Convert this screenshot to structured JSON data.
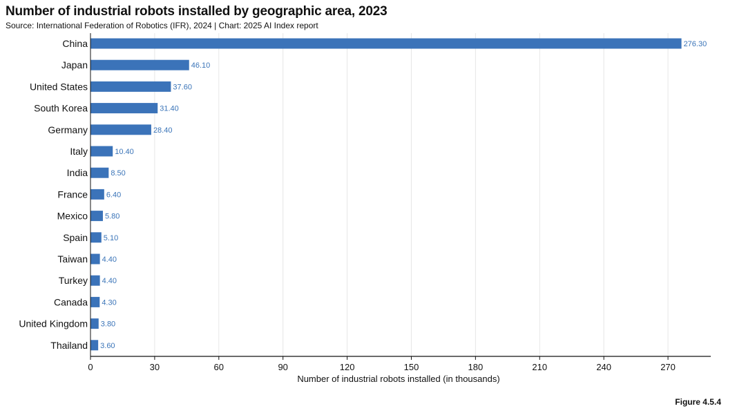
{
  "header": {
    "title": "Number of industrial robots installed by geographic area, 2023",
    "subtitle": "Source: International Federation of Robotics (IFR), 2024 | Chart: 2025 AI Index report"
  },
  "footer": {
    "figure_label": "Figure 4.5.4"
  },
  "colors": {
    "bar": "#3b73b9",
    "value_label": "#3a74b8",
    "grid": "#e6e6e6",
    "axis": "#111111"
  },
  "chart_data": {
    "type": "bar",
    "orientation": "horizontal",
    "title": "Number of industrial robots installed by geographic area, 2023",
    "xlabel": "Number of industrial robots installed (in thousands)",
    "ylabel": "",
    "xlim": [
      0,
      290
    ],
    "xticks": [
      0,
      30,
      60,
      90,
      120,
      150,
      180,
      210,
      240,
      270
    ],
    "grid": true,
    "legend": "none",
    "categories": [
      "China",
      "Japan",
      "United States",
      "South Korea",
      "Germany",
      "Italy",
      "India",
      "France",
      "Mexico",
      "Spain",
      "Taiwan",
      "Turkey",
      "Canada",
      "United Kingdom",
      "Thailand"
    ],
    "values": [
      276.3,
      46.1,
      37.6,
      31.4,
      28.4,
      10.4,
      8.5,
      6.4,
      5.8,
      5.1,
      4.4,
      4.4,
      4.3,
      3.8,
      3.6
    ],
    "value_labels": [
      "276.30",
      "46.10",
      "37.60",
      "31.40",
      "28.40",
      "10.40",
      "8.50",
      "6.40",
      "5.80",
      "5.10",
      "4.40",
      "4.40",
      "4.30",
      "3.80",
      "3.60"
    ]
  }
}
